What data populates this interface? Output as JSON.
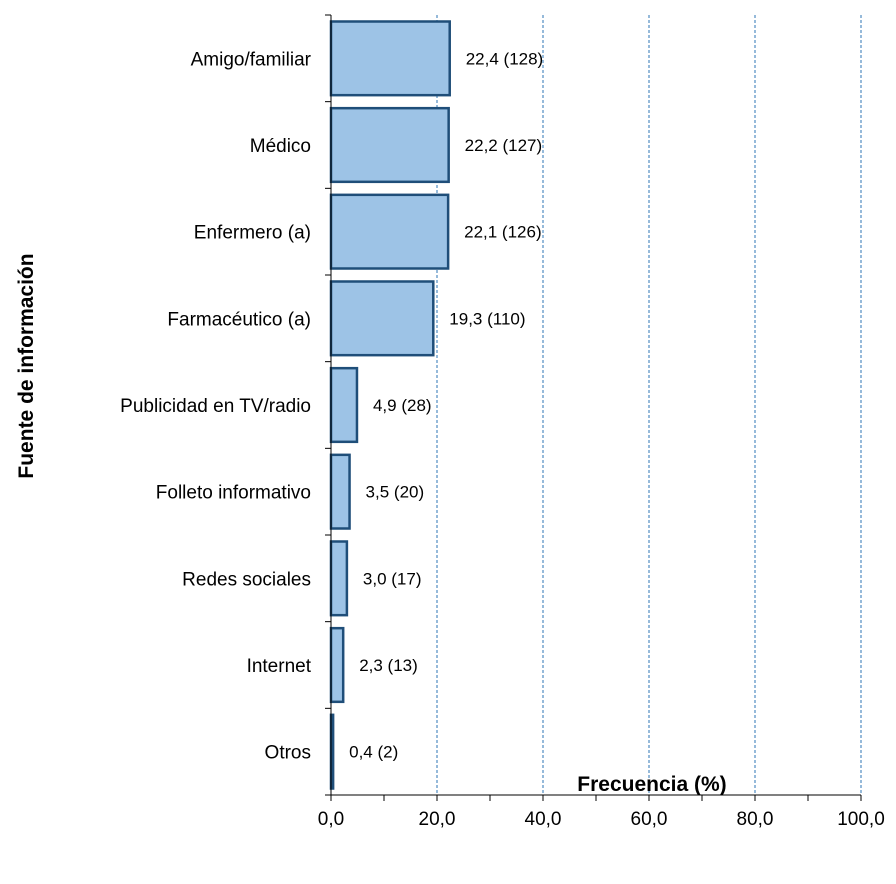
{
  "chart_data": {
    "type": "bar",
    "orientation": "horizontal",
    "categories": [
      "Amigo/familiar",
      "Médico",
      "Enfermero (a)",
      "Farmacéutico (a)",
      "Publicidad en TV/radio",
      "Folleto informativo",
      "Redes sociales",
      "Internet",
      "Otros"
    ],
    "values": [
      22.4,
      22.2,
      22.1,
      19.3,
      4.9,
      3.5,
      3.0,
      2.3,
      0.4
    ],
    "data_labels": [
      "22,4 (128)",
      "22,2 (127)",
      "22,1 (126)",
      "19,3 (110)",
      "4,9 (28)",
      "3,5 (20)",
      "3,0 (17)",
      "2,3 (13)",
      "0,4 (2)"
    ],
    "xlabel": "Frecuencia (%)",
    "ylabel": "Fuente de información",
    "xlim": [
      0,
      100
    ],
    "x_ticks": [
      0,
      20,
      40,
      60,
      80,
      100
    ],
    "x_tick_labels": [
      "0,0",
      "20,0",
      "40,0",
      "60,0",
      "80,0",
      "100,0"
    ],
    "grid": "vertical dashed",
    "bar_color": "#9dc3e6",
    "bar_edge_color": "#1f4e79",
    "grid_color": "#2e75b6"
  }
}
